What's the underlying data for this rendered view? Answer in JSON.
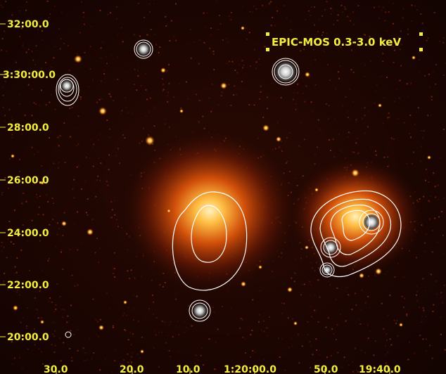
{
  "image": {
    "caption": "EPIC-MOS 0.3-3.0 keV",
    "y_axis_labels": [
      "32:00.0",
      "3:30:00.0",
      "28:00.0",
      "26:00.0",
      "24:00.0",
      "22:00.0",
      "20:00.0"
    ],
    "x_axis_labels": [
      "30.0",
      "20.0",
      "10.0",
      "1:20:00.0",
      "50.0",
      "19:40.0"
    ],
    "colors": {
      "background": "#170401",
      "label": "#f2ee40",
      "contour": "#ffffff",
      "source_core": "#fff4c8",
      "source_halo": "#d2500a"
    }
  }
}
